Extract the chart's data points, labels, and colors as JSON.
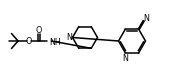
{
  "line_color": "#000000",
  "line_width": 1.1,
  "font_size": 5.8,
  "fig_width": 1.82,
  "fig_height": 0.83,
  "dpi": 100,
  "xlim": [
    0,
    18.2
  ],
  "ylim": [
    0,
    8.3
  ]
}
